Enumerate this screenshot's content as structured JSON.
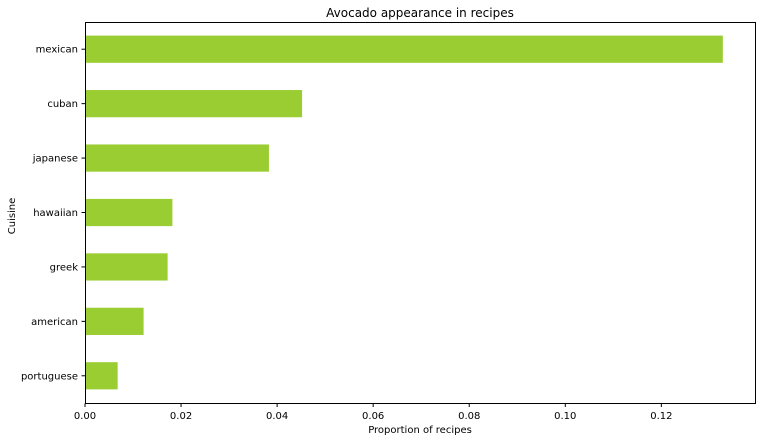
{
  "chart_data": {
    "type": "bar",
    "orientation": "horizontal",
    "title": "Avocado appearance in recipes",
    "xlabel": "Proportion of recipes",
    "ylabel": "Cuisine",
    "categories": [
      "mexican",
      "cuban",
      "japanese",
      "hawaiian",
      "greek",
      "american",
      "portuguese"
    ],
    "values": [
      0.1328,
      0.0452,
      0.0383,
      0.0182,
      0.0172,
      0.0122,
      0.0068
    ],
    "xlim": [
      0,
      0.1395
    ],
    "xticks": [
      0.0,
      0.02,
      0.04,
      0.06,
      0.08,
      0.1,
      0.12
    ],
    "xtick_labels": [
      "0.00",
      "0.02",
      "0.04",
      "0.06",
      "0.08",
      "0.10",
      "0.12"
    ],
    "grid": false,
    "legend": "none",
    "bar_color": "#9acd32"
  }
}
